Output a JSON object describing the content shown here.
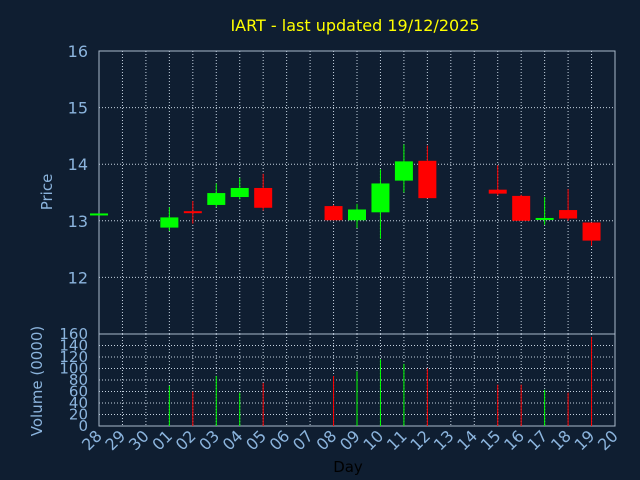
{
  "chart_data": {
    "type": "candlestick",
    "title": "IART - last updated 19/12/2025",
    "xlabel": "Day",
    "price_panel": {
      "ylabel": "Price",
      "ylim": [
        11,
        16
      ],
      "yticks": [
        "12",
        "13",
        "14",
        "15",
        "16"
      ],
      "grid": true
    },
    "volume_panel": {
      "ylabel": "Volume (0000)",
      "ylim": [
        0,
        160
      ],
      "yticks": [
        "0",
        "20",
        "40",
        "60",
        "80",
        "100",
        "120",
        "140",
        "160"
      ],
      "grid": true
    },
    "x_ticks": [
      "28",
      "29",
      "30",
      "01",
      "02",
      "03",
      "04",
      "05",
      "06",
      "07",
      "08",
      "09",
      "10",
      "11",
      "12",
      "13",
      "14",
      "15",
      "16",
      "17",
      "18",
      "19",
      "20"
    ],
    "up_color": "#00ff00",
    "down_color": "#ff0000",
    "candles": [
      {
        "day": "28",
        "open": 13.13,
        "high": 13.13,
        "low": 13.13,
        "close": 13.13,
        "volume": 0
      },
      {
        "day": "01",
        "open": 12.88,
        "high": 13.24,
        "low": 12.82,
        "close": 13.06,
        "volume": 70
      },
      {
        "day": "02",
        "open": 13.17,
        "high": 13.35,
        "low": 12.95,
        "close": 13.15,
        "volume": 60
      },
      {
        "day": "03",
        "open": 13.28,
        "high": 13.66,
        "low": 13.24,
        "close": 13.49,
        "volume": 87
      },
      {
        "day": "04",
        "open": 13.42,
        "high": 13.76,
        "low": 13.38,
        "close": 13.58,
        "volume": 58
      },
      {
        "day": "05",
        "open": 13.58,
        "high": 13.83,
        "low": 13.18,
        "close": 13.23,
        "volume": 75
      },
      {
        "day": "08",
        "open": 13.26,
        "high": 13.28,
        "low": 13.01,
        "close": 13.01,
        "volume": 87
      },
      {
        "day": "09",
        "open": 13.01,
        "high": 13.3,
        "low": 12.87,
        "close": 13.2,
        "volume": 95
      },
      {
        "day": "10",
        "open": 13.15,
        "high": 13.91,
        "low": 12.68,
        "close": 13.66,
        "volume": 116
      },
      {
        "day": "11",
        "open": 13.71,
        "high": 14.35,
        "low": 13.5,
        "close": 14.05,
        "volume": 108
      },
      {
        "day": "12",
        "open": 14.06,
        "high": 14.33,
        "low": 13.4,
        "close": 13.4,
        "volume": 100
      },
      {
        "day": "15",
        "open": 13.55,
        "high": 13.98,
        "low": 13.45,
        "close": 13.48,
        "volume": 72
      },
      {
        "day": "16",
        "open": 13.44,
        "high": 13.46,
        "low": 13.0,
        "close": 13.0,
        "volume": 72
      },
      {
        "day": "17",
        "open": 13.02,
        "high": 13.42,
        "low": 12.93,
        "close": 13.05,
        "volume": 63
      },
      {
        "day": "18",
        "open": 13.19,
        "high": 13.56,
        "low": 13.0,
        "close": 13.04,
        "volume": 58
      },
      {
        "day": "19",
        "open": 12.97,
        "high": 12.97,
        "low": 12.56,
        "close": 12.65,
        "volume": 155
      }
    ]
  }
}
